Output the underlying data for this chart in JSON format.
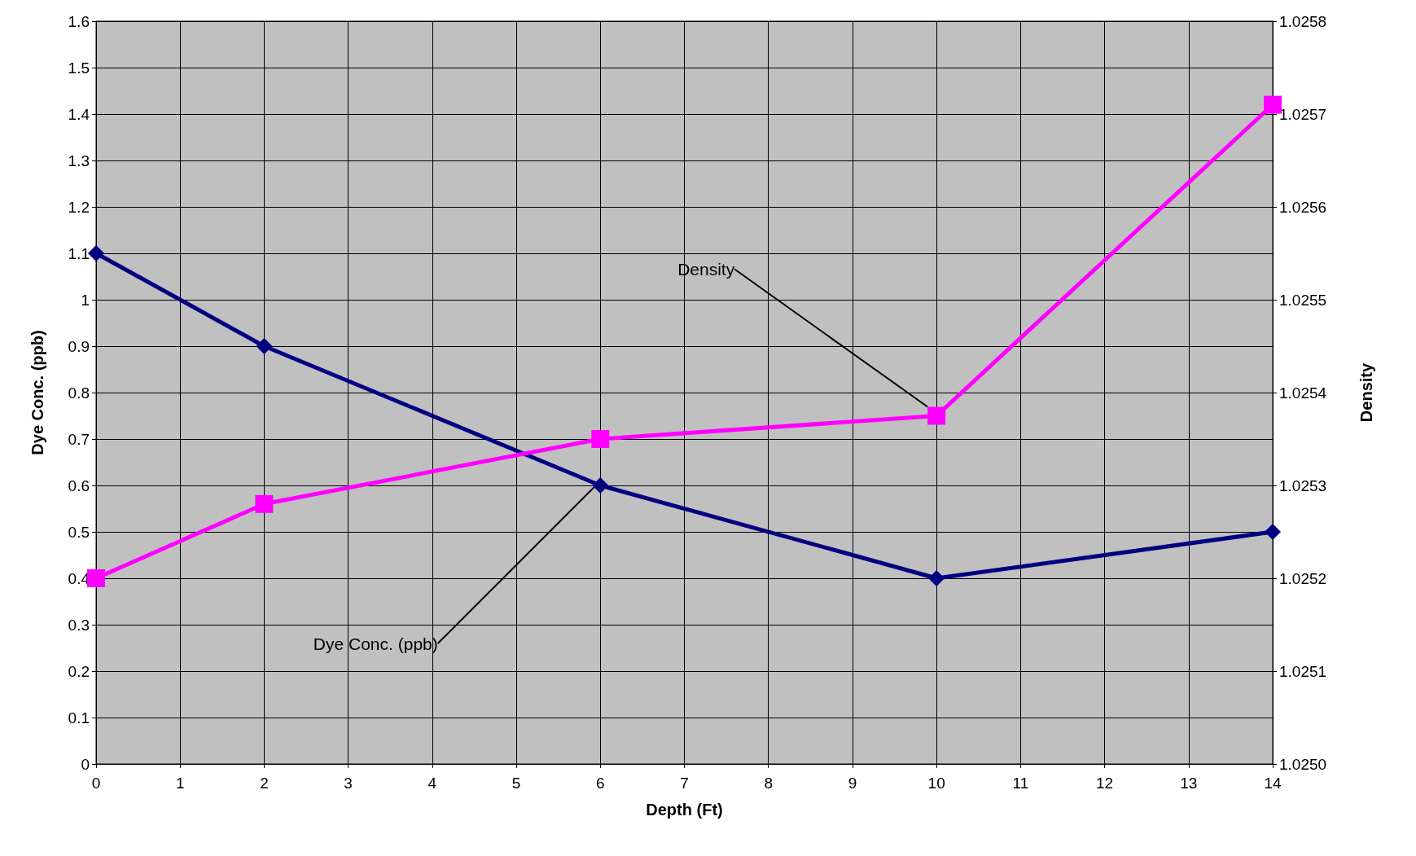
{
  "chart_data": {
    "type": "line",
    "xlabel": "Depth (Ft)",
    "ylabel": "Dye Conc. (ppb)",
    "y2label": "Density",
    "x": [
      0,
      2,
      6,
      10,
      14
    ],
    "series": [
      {
        "name": "Dye Conc. (ppb)",
        "color": "#000080",
        "values": [
          1.1,
          0.9,
          0.6,
          0.4,
          0.5
        ],
        "marker": "diamond"
      },
      {
        "name": "Density",
        "color": "#ff00ff",
        "values": [
          1.0252,
          1.02528,
          1.02535,
          1.025375,
          1.02571
        ],
        "marker": "square",
        "axis": "y2"
      }
    ],
    "xlim": [
      0,
      14
    ],
    "xticks": [
      0,
      1,
      2,
      3,
      4,
      5,
      6,
      7,
      8,
      9,
      10,
      11,
      12,
      13,
      14
    ],
    "ylim": [
      0,
      1.6
    ],
    "yticks": [
      0,
      0.1,
      0.2,
      0.3,
      0.4,
      0.5,
      0.6,
      0.7,
      0.8,
      0.9,
      1,
      1.1,
      1.2,
      1.3,
      1.4,
      1.5,
      1.6
    ],
    "y2lim": [
      1.025,
      1.0258
    ],
    "y2ticks": [
      {
        "value": 1.025,
        "label": "1.0250"
      },
      {
        "value": 1.0251,
        "label": "1.0251"
      },
      {
        "value": 1.0252,
        "label": "1.0252"
      },
      {
        "value": 1.0253,
        "label": "1.0253"
      },
      {
        "value": 1.0254,
        "label": "1.0254"
      },
      {
        "value": 1.0255,
        "label": "1.0255"
      },
      {
        "value": 1.0256,
        "label": "1.0256"
      },
      {
        "value": 1.0257,
        "label": "1.0257"
      },
      {
        "value": 1.0258,
        "label": "1.0258"
      }
    ],
    "grid": true,
    "legend": false,
    "line_style": "solid"
  }
}
